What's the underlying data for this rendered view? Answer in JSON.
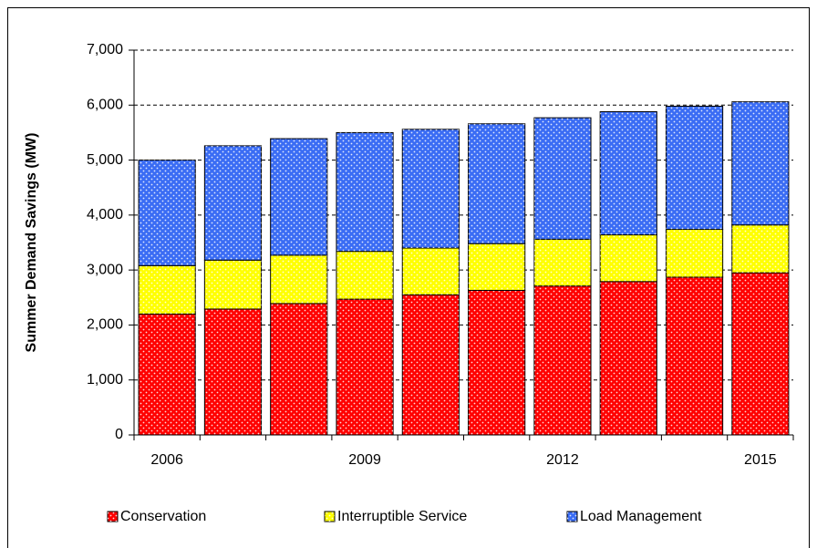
{
  "chart_data": {
    "type": "stacked_bar",
    "y_label": "Summer Demand Savings (MW)",
    "categories": [
      "2006",
      null,
      null,
      "2009",
      null,
      null,
      "2012",
      null,
      null,
      "2015"
    ],
    "series": [
      {
        "name": "Conservation",
        "color": "#ff0000",
        "values": [
          2200,
          2290,
          2390,
          2470,
          2550,
          2630,
          2710,
          2790,
          2870,
          2950
        ]
      },
      {
        "name": "Interruptible Service",
        "color": "#ffff00",
        "values": [
          880,
          890,
          880,
          870,
          850,
          850,
          850,
          850,
          870,
          870
        ]
      },
      {
        "name": "Load Management",
        "color": "#3a6cf4",
        "values": [
          1920,
          2080,
          2120,
          2160,
          2160,
          2180,
          2210,
          2240,
          2240,
          2240
        ]
      }
    ],
    "ylim": [
      0,
      7000
    ],
    "yticks": [
      0,
      {
        "value": 1000,
        "label": "1,000"
      },
      {
        "value": 2000,
        "label": "2,000"
      },
      {
        "value": 3000,
        "label": "3,000"
      },
      {
        "value": 4000,
        "label": "4,000"
      },
      {
        "value": 5000,
        "label": "5,000"
      },
      {
        "value": 6000,
        "label": "6,000"
      },
      {
        "value": 7000,
        "label": "7,000"
      }
    ],
    "grid": true
  }
}
